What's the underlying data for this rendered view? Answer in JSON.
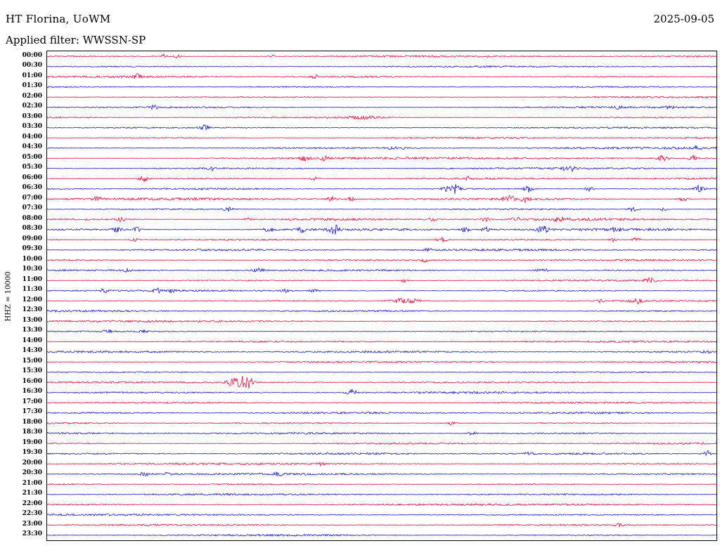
{
  "header": {
    "station_title": "HT Florina, UoWM",
    "date": "2025-09-05",
    "filter_label": "Applied filter: WWSSN-SP"
  },
  "axis": {
    "scale_label": "HHZ = 10000"
  },
  "colors": {
    "trace_red": "#e8103c",
    "trace_blue": "#1a1acd",
    "frame": "#000000",
    "text": "#000000"
  },
  "chart_data": {
    "type": "helicorder",
    "title": "HT Florina, UoWM",
    "date": "2025-09-05",
    "filter": "WWSSN-SP",
    "channel_scale": "HHZ = 10000",
    "row_duration_minutes": 30,
    "start_time": "00:00",
    "end_time": "23:30",
    "event_tuple_format": [
      "x_fraction_of_row",
      "amplitude_px",
      "sigma_px"
    ],
    "rows": [
      {
        "t": "00:00",
        "c": "red",
        "base": 1,
        "events": [
          [
            0.175,
            3.5,
            3
          ],
          [
            0.195,
            3,
            3
          ],
          [
            0.335,
            2.5,
            3
          ]
        ]
      },
      {
        "t": "00:30",
        "c": "blue",
        "base": 1,
        "events": []
      },
      {
        "t": "01:00",
        "c": "red",
        "base": 1,
        "events": [
          [
            0.135,
            3.5,
            4
          ],
          [
            0.4,
            2.5,
            3
          ]
        ]
      },
      {
        "t": "01:30",
        "c": "blue",
        "base": 1,
        "events": []
      },
      {
        "t": "02:00",
        "c": "red",
        "base": 1,
        "events": []
      },
      {
        "t": "02:30",
        "c": "blue",
        "base": 1,
        "events": [
          [
            0.16,
            3,
            4
          ],
          [
            0.855,
            3,
            5
          ],
          [
            0.93,
            2.5,
            4
          ]
        ]
      },
      {
        "t": "03:00",
        "c": "red",
        "base": 1.1,
        "events": [
          [
            0.47,
            1.8,
            20
          ]
        ]
      },
      {
        "t": "03:30",
        "c": "blue",
        "base": 1,
        "events": [
          [
            0.235,
            3.5,
            5
          ]
        ]
      },
      {
        "t": "04:00",
        "c": "red",
        "base": 1,
        "events": []
      },
      {
        "t": "04:30",
        "c": "blue",
        "base": 1.1,
        "events": [
          [
            0.52,
            1.8,
            10
          ],
          [
            0.97,
            3.5,
            4
          ]
        ]
      },
      {
        "t": "05:00",
        "c": "red",
        "base": 1.2,
        "events": [
          [
            0.385,
            3.5,
            5
          ],
          [
            0.415,
            3.5,
            4
          ],
          [
            0.92,
            4.5,
            5
          ],
          [
            0.965,
            4,
            4
          ]
        ]
      },
      {
        "t": "05:30",
        "c": "blue",
        "base": 1.1,
        "events": [
          [
            0.245,
            3,
            4
          ],
          [
            0.78,
            3.5,
            6
          ]
        ]
      },
      {
        "t": "06:00",
        "c": "red",
        "base": 1.1,
        "events": [
          [
            0.145,
            4.5,
            5
          ],
          [
            0.4,
            3,
            4
          ],
          [
            0.63,
            2.5,
            3
          ]
        ]
      },
      {
        "t": "06:30",
        "c": "blue",
        "base": 1.1,
        "events": [
          [
            0.605,
            9,
            7
          ],
          [
            0.72,
            5,
            5
          ],
          [
            0.81,
            3.5,
            4
          ],
          [
            0.975,
            6,
            4
          ]
        ]
      },
      {
        "t": "07:00",
        "c": "red",
        "base": 1.2,
        "events": [
          [
            0.075,
            3,
            4
          ],
          [
            0.425,
            3.5,
            5
          ],
          [
            0.455,
            3.5,
            4
          ],
          [
            0.69,
            4,
            6
          ],
          [
            0.715,
            4.5,
            5
          ],
          [
            0.95,
            3,
            4
          ]
        ]
      },
      {
        "t": "07:30",
        "c": "blue",
        "base": 1.2,
        "events": [
          [
            0.27,
            3,
            4
          ],
          [
            0.875,
            3.5,
            5
          ],
          [
            0.92,
            3,
            4
          ]
        ]
      },
      {
        "t": "08:00",
        "c": "red",
        "base": 1.3,
        "events": [
          [
            0.11,
            3,
            4
          ],
          [
            0.3,
            2.5,
            4
          ],
          [
            0.575,
            2.5,
            4
          ],
          [
            0.655,
            3,
            4
          ],
          [
            0.7,
            3,
            4
          ],
          [
            0.765,
            3.5,
            5
          ]
        ]
      },
      {
        "t": "08:30",
        "c": "blue",
        "base": 1.3,
        "events": [
          [
            0.105,
            4,
            5
          ],
          [
            0.135,
            3.5,
            4
          ],
          [
            0.33,
            3.5,
            5
          ],
          [
            0.38,
            3.5,
            4
          ],
          [
            0.43,
            7,
            6
          ],
          [
            0.625,
            3.5,
            4
          ],
          [
            0.655,
            3.5,
            4
          ],
          [
            0.74,
            5,
            6
          ],
          [
            0.85,
            3,
            5
          ]
        ]
      },
      {
        "t": "09:00",
        "c": "red",
        "base": 1.2,
        "events": [
          [
            0.13,
            3,
            4
          ],
          [
            0.59,
            3.5,
            6
          ],
          [
            0.845,
            3,
            4
          ],
          [
            0.88,
            3,
            4
          ]
        ]
      },
      {
        "t": "09:30",
        "c": "blue",
        "base": 1,
        "events": [
          [
            0.57,
            1.8,
            5
          ]
        ]
      },
      {
        "t": "10:00",
        "c": "red",
        "base": 1,
        "events": [
          [
            0.565,
            2.5,
            4
          ]
        ]
      },
      {
        "t": "10:30",
        "c": "blue",
        "base": 1,
        "events": [
          [
            0.12,
            2.5,
            4
          ],
          [
            0.315,
            3,
            5
          ],
          [
            0.74,
            2.5,
            8
          ]
        ]
      },
      {
        "t": "11:00",
        "c": "red",
        "base": 1,
        "events": [
          [
            0.535,
            2.5,
            4
          ],
          [
            0.9,
            3.5,
            5
          ]
        ]
      },
      {
        "t": "11:30",
        "c": "blue",
        "base": 1,
        "events": [
          [
            0.085,
            3,
            4
          ],
          [
            0.165,
            3,
            4
          ],
          [
            0.185,
            3,
            3
          ],
          [
            0.355,
            2.5,
            4
          ],
          [
            0.4,
            3.5,
            5
          ]
        ]
      },
      {
        "t": "12:00",
        "c": "red",
        "base": 1,
        "events": [
          [
            0.535,
            4,
            14
          ],
          [
            0.825,
            2.5,
            4
          ],
          [
            0.88,
            4,
            6
          ]
        ]
      },
      {
        "t": "12:30",
        "c": "blue",
        "base": 1,
        "events": []
      },
      {
        "t": "13:00",
        "c": "red",
        "base": 1,
        "events": []
      },
      {
        "t": "13:30",
        "c": "blue",
        "base": 1,
        "events": [
          [
            0.09,
            2.5,
            4
          ],
          [
            0.145,
            2.5,
            4
          ]
        ]
      },
      {
        "t": "14:00",
        "c": "red",
        "base": 1,
        "events": []
      },
      {
        "t": "14:30",
        "c": "blue",
        "base": 1,
        "events": [
          [
            0.985,
            2.5,
            4
          ]
        ]
      },
      {
        "t": "15:00",
        "c": "red",
        "base": 1,
        "events": []
      },
      {
        "t": "15:30",
        "c": "blue",
        "base": 1,
        "events": []
      },
      {
        "t": "16:00",
        "c": "red",
        "base": 1,
        "events": [
          [
            0.285,
            8,
            9
          ],
          [
            0.3,
            7,
            6
          ]
        ]
      },
      {
        "t": "16:30",
        "c": "blue",
        "base": 1,
        "events": [
          [
            0.455,
            4,
            5
          ]
        ]
      },
      {
        "t": "17:00",
        "c": "red",
        "base": 1,
        "events": []
      },
      {
        "t": "17:30",
        "c": "blue",
        "base": 1,
        "events": []
      },
      {
        "t": "18:00",
        "c": "red",
        "base": 1,
        "events": [
          [
            0.605,
            3,
            4
          ]
        ]
      },
      {
        "t": "18:30",
        "c": "blue",
        "base": 1,
        "events": [
          [
            0.635,
            2.5,
            4
          ]
        ]
      },
      {
        "t": "19:00",
        "c": "red",
        "base": 1,
        "events": []
      },
      {
        "t": "19:30",
        "c": "blue",
        "base": 1,
        "events": [
          [
            0.72,
            2.5,
            4
          ],
          [
            0.985,
            5,
            4
          ]
        ]
      },
      {
        "t": "20:00",
        "c": "red",
        "base": 1,
        "events": [
          [
            0.41,
            2.5,
            4
          ]
        ]
      },
      {
        "t": "20:30",
        "c": "blue",
        "base": 1,
        "events": [
          [
            0.145,
            3,
            4
          ],
          [
            0.18,
            2.5,
            3
          ],
          [
            0.345,
            2.5,
            4
          ]
        ]
      },
      {
        "t": "21:00",
        "c": "red",
        "base": 1,
        "events": []
      },
      {
        "t": "21:30",
        "c": "blue",
        "base": 1,
        "events": []
      },
      {
        "t": "22:00",
        "c": "red",
        "base": 1,
        "events": []
      },
      {
        "t": "22:30",
        "c": "blue",
        "base": 1,
        "events": []
      },
      {
        "t": "23:00",
        "c": "red",
        "base": 1,
        "events": [
          [
            0.855,
            2.5,
            4
          ]
        ]
      },
      {
        "t": "23:30",
        "c": "blue",
        "base": 1,
        "events": []
      }
    ]
  }
}
